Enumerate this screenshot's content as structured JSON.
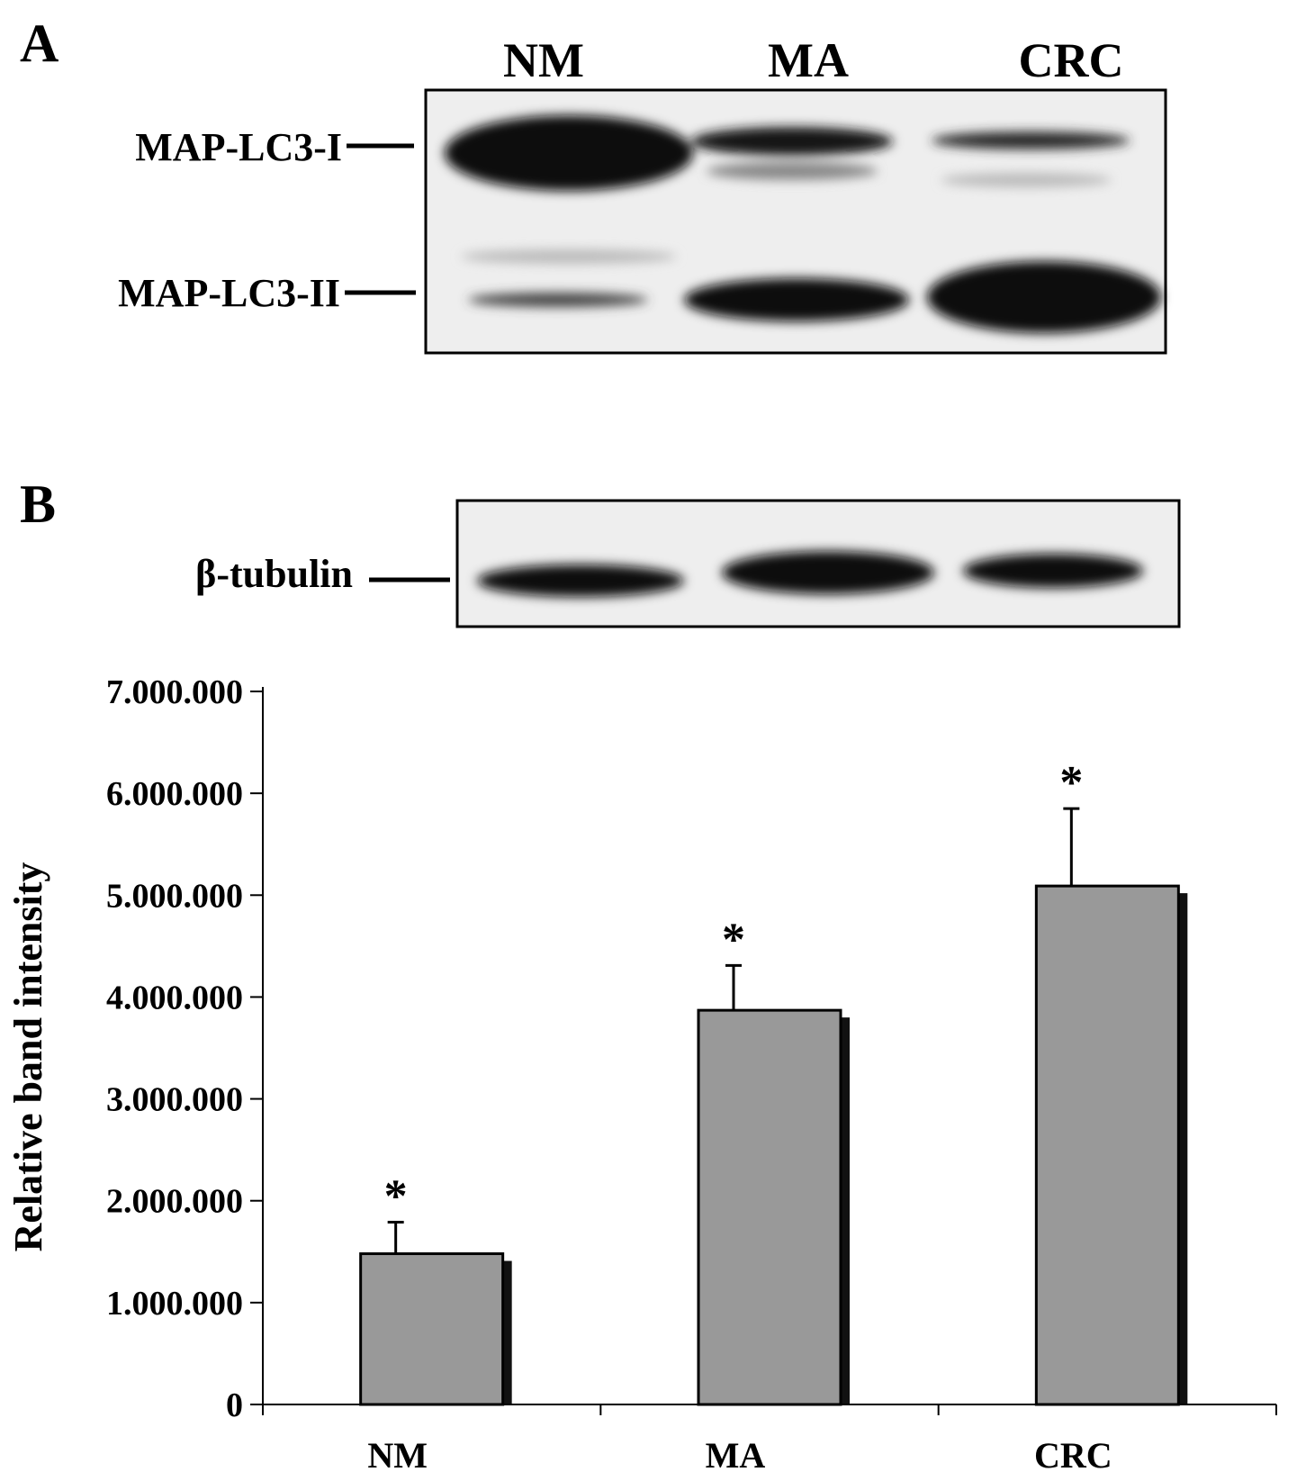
{
  "panel_a": {
    "label": "A",
    "lanes": [
      "NM",
      "MA",
      "CRC"
    ],
    "markers": [
      "MAP-LC3-I",
      "MAP-LC3-II"
    ]
  },
  "panel_b": {
    "label": "B",
    "marker": "β-tubulin"
  },
  "chart_data": {
    "type": "bar",
    "categories": [
      "NM",
      "MA",
      "CRC"
    ],
    "values": [
      1480000,
      3870000,
      5090000
    ],
    "error_plus": [
      310000,
      440000,
      760000
    ],
    "annotations": [
      "*",
      "*",
      "*"
    ],
    "ylabel": "Relative band intensity",
    "xlabel": "",
    "ylim": [
      0,
      7000000
    ],
    "yticks": [
      0,
      1000000,
      2000000,
      3000000,
      4000000,
      5000000,
      6000000,
      7000000
    ],
    "ytick_labels": [
      "0",
      "1.000.000",
      "2.000.000",
      "3.000.000",
      "4.000.000",
      "5.000.000",
      "6.000.000",
      "7.000.000"
    ],
    "bar_color": "#999999",
    "grid": false,
    "legend": "none"
  }
}
